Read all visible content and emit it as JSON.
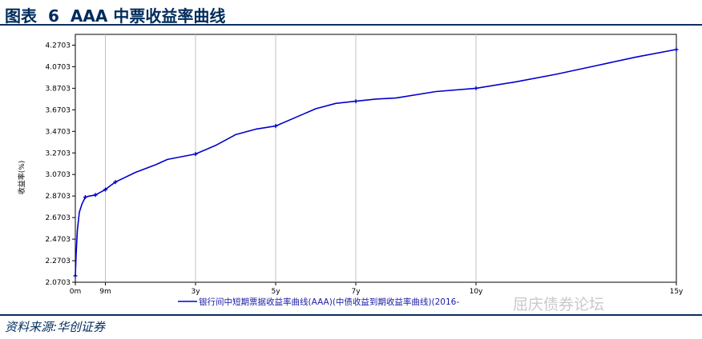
{
  "header": {
    "figure_label": "图表",
    "figure_number": "6",
    "title_text": "AAA 中票收益率曲线"
  },
  "source_note": "资料来源:华创证券",
  "watermark": "屈庆债券论坛",
  "colors": {
    "title": "#002b5c",
    "series": "#0000cc",
    "grid": "#c0c0c0",
    "rule": "#0b2f5e"
  },
  "chart_data": {
    "type": "line",
    "title": "",
    "ylabel": "收益率(%)",
    "xlabel": "",
    "ylim": [
      2.0703,
      4.3703
    ],
    "xlim": [
      0,
      15
    ],
    "grid": "vertical",
    "legend": "bottom",
    "yticks": [
      "2.0703",
      "2.2703",
      "2.4703",
      "2.6703",
      "2.8703",
      "3.0703",
      "3.2703",
      "3.4703",
      "3.6703",
      "3.8703",
      "4.0703",
      "4.2703"
    ],
    "xticks": [
      {
        "label": "0m",
        "x": 0
      },
      {
        "label": "9m",
        "x": 0.75
      },
      {
        "label": "3y",
        "x": 3
      },
      {
        "label": "5y",
        "x": 5
      },
      {
        "label": "7y",
        "x": 7
      },
      {
        "label": "10y",
        "x": 10
      },
      {
        "label": "15y",
        "x": 15
      }
    ],
    "series": [
      {
        "name": "银行间中短期票据收益率曲线(AAA)(中债收益到期收益率曲线)(2016-",
        "points": [
          [
            0.0,
            2.13
          ],
          [
            0.02,
            2.33
          ],
          [
            0.05,
            2.55
          ],
          [
            0.1,
            2.72
          ],
          [
            0.17,
            2.8
          ],
          [
            0.25,
            2.86
          ],
          [
            0.35,
            2.87
          ],
          [
            0.5,
            2.88
          ],
          [
            0.6,
            2.9
          ],
          [
            0.75,
            2.93
          ],
          [
            0.85,
            2.96
          ],
          [
            1.0,
            3.0
          ],
          [
            1.5,
            3.09
          ],
          [
            2.0,
            3.16
          ],
          [
            2.3,
            3.21
          ],
          [
            3.0,
            3.26
          ],
          [
            3.5,
            3.34
          ],
          [
            4.0,
            3.44
          ],
          [
            4.5,
            3.49
          ],
          [
            5.0,
            3.52
          ],
          [
            5.5,
            3.6
          ],
          [
            6.0,
            3.68
          ],
          [
            6.5,
            3.73
          ],
          [
            7.0,
            3.75
          ],
          [
            7.5,
            3.77
          ],
          [
            8.0,
            3.78
          ],
          [
            9.0,
            3.84
          ],
          [
            10.0,
            3.87
          ],
          [
            11.0,
            3.93
          ],
          [
            12.0,
            4.0
          ],
          [
            13.0,
            4.08
          ],
          [
            14.0,
            4.16
          ],
          [
            15.0,
            4.23
          ]
        ],
        "markers": [
          [
            0.0,
            2.13
          ],
          [
            0.25,
            2.86
          ],
          [
            0.5,
            2.88
          ],
          [
            0.75,
            2.93
          ],
          [
            1.0,
            3.0
          ],
          [
            3.0,
            3.26
          ],
          [
            5.0,
            3.52
          ],
          [
            7.0,
            3.75
          ],
          [
            10.0,
            3.87
          ],
          [
            15.0,
            4.23
          ]
        ]
      }
    ]
  }
}
